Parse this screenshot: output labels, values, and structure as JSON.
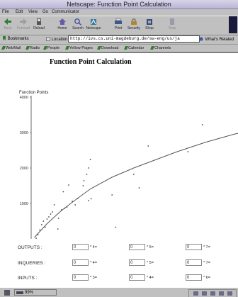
{
  "window": {
    "title": "Netscape: Function Point Calculation"
  },
  "menu": [
    "File",
    "Edit",
    "View",
    "Go",
    "Communicator"
  ],
  "toolbar": [
    {
      "label": "Back",
      "icon": "back-arrow-icon",
      "disabled": true
    },
    {
      "label": "Forward",
      "icon": "forward-arrow-icon",
      "disabled": true
    },
    {
      "label": "Reload",
      "icon": "reload-icon",
      "disabled": false
    },
    {
      "label": "Home",
      "icon": "home-icon",
      "disabled": false
    },
    {
      "label": "Search",
      "icon": "search-icon",
      "disabled": false
    },
    {
      "label": "Netscape",
      "icon": "netscape-icon",
      "disabled": false
    },
    {
      "label": "Print",
      "icon": "print-icon",
      "disabled": false
    },
    {
      "label": "Security",
      "icon": "security-lock-icon",
      "disabled": false
    },
    {
      "label": "Shop",
      "icon": "shop-icon",
      "disabled": false
    },
    {
      "label": "Stop",
      "icon": "stop-icon",
      "disabled": true
    }
  ],
  "location": {
    "bookmarks_label": "Bookmarks",
    "location_label": "Location:",
    "url": "http://ivs.cs.uni-magdeburg.de/sw-eng/us/ja",
    "related_label": "What's Related"
  },
  "personal_bar": [
    "WebMail",
    "Radio",
    "People",
    "Yellow Pages",
    "Download",
    "Calendar",
    "Channels"
  ],
  "page": {
    "title": "Function Point Calculation"
  },
  "chart_data": {
    "type": "scatter",
    "ylabel": "Function Points",
    "y_ticks": [
      1000,
      2000,
      3000,
      4000
    ],
    "ylim": [
      0,
      4000
    ],
    "grid": false,
    "points": [
      [
        0.1,
        20
      ],
      [
        0.15,
        120
      ],
      [
        0.2,
        250
      ],
      [
        0.25,
        400
      ],
      [
        0.3,
        500
      ],
      [
        0.35,
        330
      ],
      [
        0.4,
        560
      ],
      [
        0.45,
        620
      ],
      [
        0.5,
        700
      ],
      [
        0.55,
        760
      ],
      [
        0.6,
        960
      ],
      [
        0.7,
        280
      ],
      [
        0.72,
        580
      ],
      [
        0.8,
        820
      ],
      [
        0.85,
        1330
      ],
      [
        0.88,
        860
      ],
      [
        0.95,
        900
      ],
      [
        1.0,
        1520
      ],
      [
        1.1,
        1060
      ],
      [
        1.18,
        960
      ],
      [
        1.25,
        1140
      ],
      [
        1.4,
        1500
      ],
      [
        1.42,
        1640
      ],
      [
        1.5,
        1820
      ],
      [
        1.55,
        2000
      ],
      [
        1.6,
        2240
      ],
      [
        1.55,
        1080
      ],
      [
        1.62,
        1130
      ],
      [
        2.2,
        1240
      ],
      [
        2.3,
        330
      ],
      [
        2.8,
        1820
      ],
      [
        2.95,
        1440
      ],
      [
        3.2,
        2620
      ],
      [
        4.3,
        2460
      ],
      [
        4.7,
        3220
      ],
      [
        6.1,
        2620
      ]
    ],
    "curve": [
      [
        0.05,
        40
      ],
      [
        0.4,
        430
      ],
      [
        0.8,
        800
      ],
      [
        1.2,
        1110
      ],
      [
        1.6,
        1410
      ],
      [
        2.2,
        1740
      ],
      [
        2.8,
        2000
      ],
      [
        3.4,
        2230
      ],
      [
        4.0,
        2460
      ],
      [
        4.8,
        2730
      ],
      [
        5.6,
        2960
      ],
      [
        6.4,
        3110
      ],
      [
        7.0,
        3200
      ]
    ]
  },
  "form": {
    "rows": [
      {
        "label": "OUTPUTS :",
        "fields": [
          {
            "value": "0",
            "factor": "* 4="
          },
          {
            "value": "0",
            "factor": "* 5="
          },
          {
            "value": "0",
            "factor": "* 7="
          }
        ]
      },
      {
        "label": "INQUERIES :",
        "fields": [
          {
            "value": "0",
            "factor": "* 4="
          },
          {
            "value": "0",
            "factor": "* 5="
          },
          {
            "value": "0",
            "factor": "* 7="
          }
        ]
      },
      {
        "label": "INPUTS :",
        "fields": [
          {
            "value": "0",
            "factor": "* 3="
          },
          {
            "value": "0",
            "factor": "* 4="
          },
          {
            "value": "0",
            "factor": "* 6="
          }
        ]
      }
    ]
  },
  "status": {
    "percent": "99%"
  }
}
